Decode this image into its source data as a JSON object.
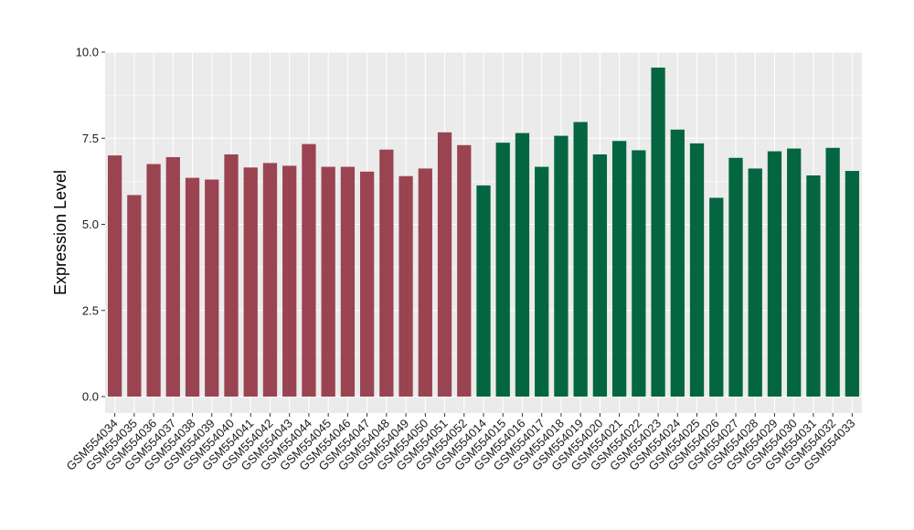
{
  "chart_data": {
    "type": "bar",
    "title": "",
    "xlabel": "",
    "ylabel": "Expression Level",
    "ylim": [
      0,
      10
    ],
    "yticks": [
      "0.0",
      "2.5",
      "5.0",
      "7.5",
      "10.0"
    ],
    "ytick_values": [
      0,
      2.5,
      5,
      7.5,
      10
    ],
    "grid": true,
    "legend": "none",
    "colors": {
      "group_a": "#9a4452",
      "group_b": "#036641",
      "panel": "#ebebeb",
      "grid": "#ffffff"
    },
    "categories": [
      "GSM554034",
      "GSM554035",
      "GSM554036",
      "GSM554037",
      "GSM554038",
      "GSM554039",
      "GSM554040",
      "GSM554041",
      "GSM554042",
      "GSM554043",
      "GSM554044",
      "GSM554045",
      "GSM554046",
      "GSM554047",
      "GSM554048",
      "GSM554049",
      "GSM554050",
      "GSM554051",
      "GSM554052",
      "GSM554014",
      "GSM554015",
      "GSM554016",
      "GSM554017",
      "GSM554018",
      "GSM554019",
      "GSM554020",
      "GSM554021",
      "GSM554022",
      "GSM554023",
      "GSM554024",
      "GSM554025",
      "GSM554026",
      "GSM554027",
      "GSM554028",
      "GSM554029",
      "GSM554030",
      "GSM554031",
      "GSM554032",
      "GSM554033"
    ],
    "values": [
      7.0,
      5.85,
      6.75,
      6.95,
      6.35,
      6.3,
      7.03,
      6.65,
      6.78,
      6.7,
      7.33,
      6.67,
      6.67,
      6.53,
      7.17,
      6.4,
      6.62,
      7.67,
      7.3,
      6.13,
      7.37,
      7.65,
      6.67,
      7.57,
      7.97,
      7.03,
      7.42,
      7.15,
      9.55,
      7.75,
      7.35,
      5.77,
      6.93,
      6.62,
      7.12,
      7.2,
      6.42,
      7.22,
      6.55
    ],
    "groups": [
      "a",
      "a",
      "a",
      "a",
      "a",
      "a",
      "a",
      "a",
      "a",
      "a",
      "a",
      "a",
      "a",
      "a",
      "a",
      "a",
      "a",
      "a",
      "a",
      "b",
      "b",
      "b",
      "b",
      "b",
      "b",
      "b",
      "b",
      "b",
      "b",
      "b",
      "b",
      "b",
      "b",
      "b",
      "b",
      "b",
      "b",
      "b",
      "b"
    ]
  }
}
